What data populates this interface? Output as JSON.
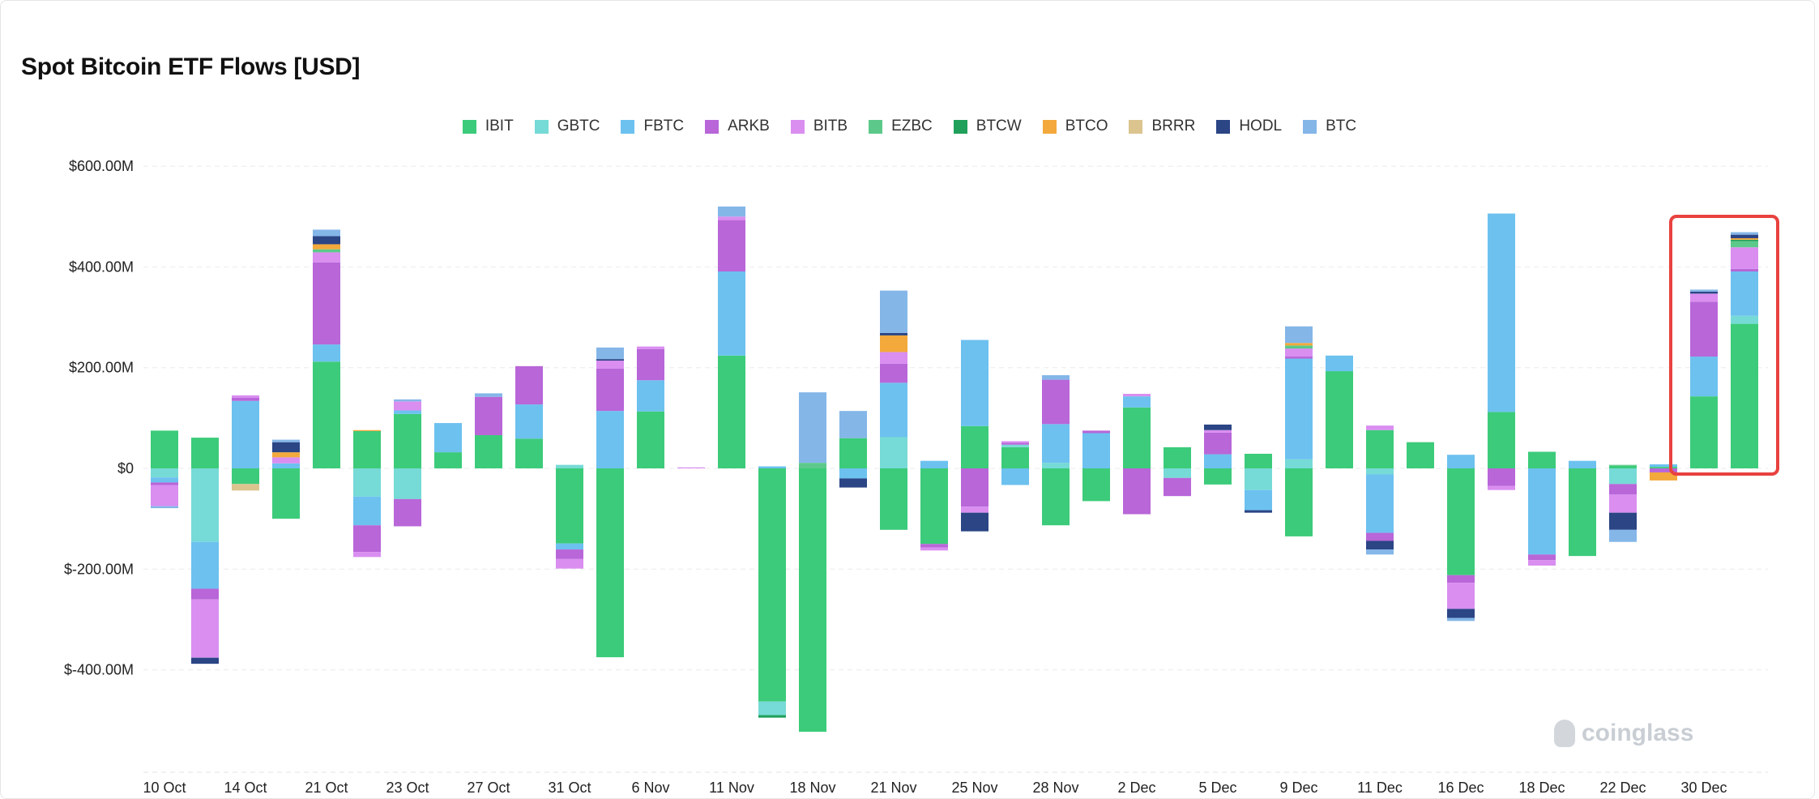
{
  "chart_data": {
    "type": "bar",
    "stacked": true,
    "title": "Spot Bitcoin ETF Flows [USD]",
    "xlabel": "",
    "ylabel": "",
    "ylim": [
      -600,
      600
    ],
    "yticks": [
      600,
      400,
      200,
      0,
      -200,
      -400
    ],
    "ytick_labels": [
      "$600.00M",
      "$400.00M",
      "$200.00M",
      "$0",
      "$-200.00M",
      "$-400.00M"
    ],
    "units": "USD millions",
    "grid": true,
    "legend_position": "top-center",
    "categories": [
      "10 Oct",
      "",
      "14 Oct",
      "",
      "21 Oct",
      "",
      "23 Oct",
      "",
      "27 Oct",
      "",
      "31 Oct",
      "",
      "6 Nov",
      "",
      "11 Nov",
      "",
      "18 Nov",
      "",
      "21 Nov",
      "",
      "25 Nov",
      "",
      "28 Nov",
      "",
      "2 Dec",
      "",
      "5 Dec",
      "",
      "9 Dec",
      "",
      "11 Dec",
      "",
      "16 Dec",
      "",
      "18 Dec",
      "",
      "22 Dec",
      "",
      "30 Dec",
      ""
    ],
    "series": [
      {
        "name": "IBIT",
        "color": "#3ccb7a",
        "values": [
          75,
          61,
          -31,
          -100,
          212,
          74,
          108,
          32,
          66,
          59,
          -149,
          -375,
          113,
          0,
          224,
          -463,
          -523,
          60,
          -122,
          -150,
          84,
          42,
          -113,
          -65,
          121,
          42,
          -32,
          29,
          -135,
          193,
          76,
          52,
          -212,
          112,
          33,
          -174,
          5,
          3,
          143,
          287
        ]
      },
      {
        "name": "GBTC",
        "color": "#76dad6",
        "values": [
          -18,
          -146,
          0,
          0,
          0,
          -56,
          -61,
          0,
          0,
          0,
          7,
          0,
          0,
          0,
          0,
          -27,
          0,
          0,
          62,
          0,
          0,
          5,
          11,
          0,
          0,
          -19,
          0,
          -43,
          18,
          0,
          -12,
          0,
          0,
          0,
          0,
          0,
          -31,
          0,
          0,
          16
        ]
      },
      {
        "name": "FBTC",
        "color": "#6cc1ef",
        "values": [
          -10,
          -93,
          134,
          10,
          34,
          -57,
          7,
          58,
          0,
          68,
          -12,
          114,
          62,
          0,
          167,
          4,
          0,
          -20,
          108,
          15,
          171,
          -33,
          77,
          70,
          22,
          0,
          28,
          -40,
          200,
          31,
          -116,
          0,
          27,
          394,
          -171,
          15,
          0,
          5,
          79,
          88
        ]
      },
      {
        "name": "ARKB",
        "color": "#b866d8",
        "values": [
          -5,
          -21,
          6,
          0,
          163,
          -53,
          -54,
          0,
          76,
          76,
          -19,
          84,
          62,
          0,
          102,
          0,
          0,
          0,
          38,
          -7,
          -76,
          4,
          88,
          5,
          -91,
          -36,
          43,
          0,
          4,
          0,
          -16,
          0,
          -15,
          -35,
          -11,
          0,
          -21,
          -8,
          109,
          5
        ]
      },
      {
        "name": "BITB",
        "color": "#d98ef0",
        "values": [
          -42,
          -116,
          5,
          12,
          20,
          -10,
          18,
          0,
          0,
          0,
          -19,
          16,
          5,
          2,
          7,
          0,
          0,
          0,
          23,
          -6,
          -12,
          3,
          0,
          0,
          5,
          0,
          5,
          0,
          16,
          0,
          9,
          0,
          -52,
          -8,
          -11,
          0,
          -36,
          0,
          16,
          43
        ]
      },
      {
        "name": "EZBC",
        "color": "#5cc98a",
        "values": [
          0,
          0,
          0,
          0,
          6,
          0,
          0,
          0,
          0,
          0,
          0,
          0,
          0,
          0,
          0,
          0,
          11,
          0,
          0,
          0,
          0,
          0,
          0,
          0,
          0,
          0,
          0,
          0,
          6,
          0,
          0,
          0,
          0,
          0,
          0,
          0,
          2,
          0,
          0,
          12
        ]
      },
      {
        "name": "BTCW",
        "color": "#20a05a",
        "values": [
          0,
          0,
          0,
          0,
          0,
          0,
          0,
          0,
          0,
          0,
          0,
          0,
          0,
          0,
          0,
          -5,
          0,
          0,
          0,
          0,
          0,
          0,
          0,
          0,
          0,
          0,
          0,
          0,
          0,
          0,
          0,
          0,
          0,
          0,
          0,
          0,
          0,
          0,
          0,
          3
        ]
      },
      {
        "name": "BTCO",
        "color": "#f3a93b",
        "values": [
          0,
          0,
          0,
          10,
          10,
          2,
          0,
          0,
          0,
          0,
          0,
          0,
          0,
          0,
          0,
          0,
          0,
          0,
          33,
          0,
          0,
          0,
          0,
          0,
          0,
          0,
          0,
          0,
          5,
          0,
          0,
          0,
          0,
          0,
          0,
          0,
          0,
          -16,
          0,
          3
        ]
      },
      {
        "name": "BRRR",
        "color": "#dcc48f",
        "values": [
          0,
          0,
          -13,
          0,
          0,
          0,
          0,
          0,
          0,
          0,
          0,
          0,
          0,
          0,
          0,
          0,
          0,
          0,
          0,
          0,
          0,
          0,
          0,
          0,
          0,
          0,
          0,
          0,
          0,
          0,
          0,
          0,
          0,
          0,
          0,
          0,
          0,
          0,
          0,
          0
        ]
      },
      {
        "name": "HODL",
        "color": "#2b4585",
        "values": [
          0,
          -12,
          0,
          20,
          16,
          0,
          0,
          0,
          0,
          0,
          0,
          3,
          0,
          0,
          0,
          0,
          0,
          -18,
          5,
          0,
          -37,
          0,
          0,
          0,
          0,
          0,
          11,
          -5,
          0,
          0,
          -17,
          0,
          -18,
          0,
          0,
          0,
          -34,
          0,
          4,
          7
        ]
      },
      {
        "name": "BTC",
        "color": "#84b6e8",
        "values": [
          -4,
          0,
          0,
          5,
          13,
          0,
          4,
          0,
          7,
          0,
          0,
          23,
          0,
          0,
          20,
          0,
          140,
          54,
          84,
          0,
          0,
          0,
          9,
          0,
          0,
          0,
          0,
          0,
          33,
          0,
          -10,
          0,
          -6,
          0,
          0,
          0,
          -24,
          0,
          4,
          5
        ]
      }
    ],
    "highlight": {
      "categories": [
        38,
        39
      ],
      "color": "#e8423f"
    }
  },
  "watermark": "coinglass"
}
